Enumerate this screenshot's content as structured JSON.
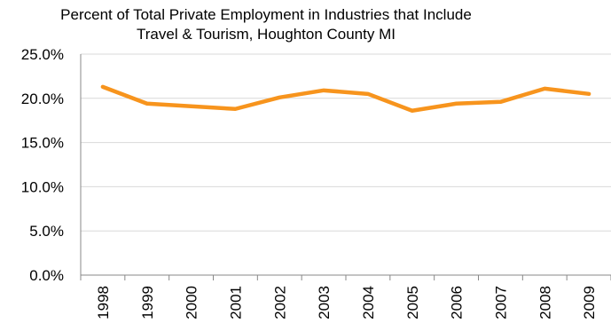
{
  "chart_data": {
    "type": "line",
    "title_lines": [
      "Percent of Total Private Employment in Industries that Include",
      "Travel & Tourism, Houghton County MI"
    ],
    "categories": [
      "1998",
      "1999",
      "2000",
      "2001",
      "2002",
      "2003",
      "2004",
      "2005",
      "2006",
      "2007",
      "2008",
      "2009"
    ],
    "series": [
      {
        "values": [
          21.3,
          19.4,
          19.1,
          18.8,
          20.1,
          20.9,
          20.5,
          18.6,
          19.4,
          19.6,
          21.1,
          20.5
        ],
        "color": "#F7941D"
      }
    ],
    "ylim": [
      0,
      25
    ],
    "yticks": [
      "25.0%",
      "20.0%",
      "15.0%",
      "10.0%",
      "5.0%",
      "0.0%"
    ],
    "ytick_values": [
      25,
      20,
      15,
      10,
      5,
      0
    ],
    "grid": true,
    "legend": "none"
  }
}
